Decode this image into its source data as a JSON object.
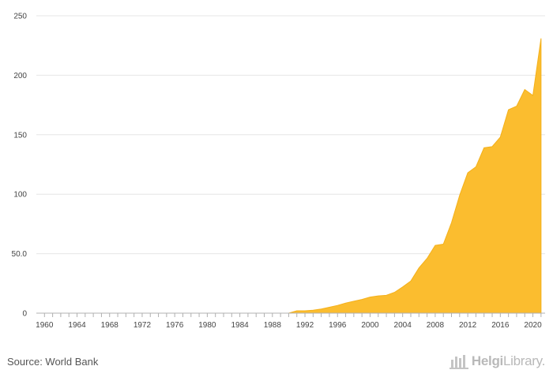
{
  "chart_data": {
    "type": "area",
    "title": "",
    "xlabel": "",
    "ylabel": "",
    "x": [
      1960,
      1961,
      1962,
      1963,
      1964,
      1965,
      1966,
      1967,
      1968,
      1969,
      1970,
      1971,
      1972,
      1973,
      1974,
      1975,
      1976,
      1977,
      1978,
      1979,
      1980,
      1981,
      1982,
      1983,
      1984,
      1985,
      1986,
      1987,
      1988,
      1989,
      1990,
      1991,
      1992,
      1993,
      1994,
      1995,
      1996,
      1997,
      1998,
      1999,
      2000,
      2001,
      2002,
      2003,
      2004,
      2005,
      2006,
      2007,
      2008,
      2009,
      2010,
      2011,
      2012,
      2013,
      2014,
      2015,
      2016,
      2017,
      2018,
      2019,
      2020,
      2021
    ],
    "values": [
      0,
      0,
      0,
      0,
      0,
      0,
      0,
      0,
      0,
      0,
      0,
      0,
      0,
      0,
      0,
      0,
      0,
      0,
      0,
      0,
      0,
      0,
      0,
      0,
      0,
      0,
      0,
      0,
      0,
      0,
      0,
      2,
      2,
      2.5,
      3.5,
      5,
      6.5,
      8.5,
      10,
      11.5,
      13.5,
      14.5,
      15,
      17.5,
      22,
      27,
      38,
      46,
      57,
      58,
      76,
      99,
      118,
      123,
      139,
      140,
      148,
      171,
      174,
      188,
      183,
      231
    ],
    "ylim": [
      0,
      250
    ],
    "xlim": [
      1959,
      2021.5
    ],
    "y_ticks": [
      "0",
      "50.0",
      "100",
      "150",
      "200",
      "250"
    ],
    "y_tick_values": [
      0,
      50,
      100,
      150,
      200,
      250
    ],
    "x_ticks": [
      "1960",
      "1964",
      "1968",
      "1972",
      "1976",
      "1980",
      "1984",
      "1988",
      "1992",
      "1996",
      "2000",
      "2004",
      "2008",
      "2012",
      "2016",
      "2020"
    ],
    "grid": true,
    "colors": {
      "area_fill": "#FBBD2F",
      "area_stroke": "#F4B01A",
      "grid": "#e6e6e6",
      "axis": "#b0b0b0"
    }
  },
  "footer": {
    "source": "Source: World Bank",
    "brand_bold": "Helgi",
    "brand_rest": "Library."
  }
}
